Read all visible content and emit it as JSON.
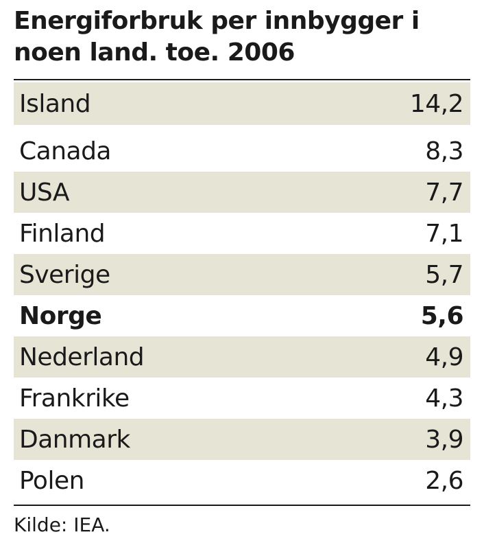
{
  "title": "Energiforbruk per innbygger i noen land. toe. 2006",
  "source": "Kilde: IEA.",
  "colors": {
    "shaded_row": "#e6e4d4",
    "text": "#1a1a1a"
  },
  "chart_data": {
    "type": "table",
    "title": "Energiforbruk per innbygger i noen land. toe. 2006",
    "unit": "toe",
    "year": 2006,
    "rows": [
      {
        "label": "Island",
        "value": "14,2",
        "number": 14.2,
        "shaded": true,
        "bold": false
      },
      {
        "label": "Canada",
        "value": "8,3",
        "number": 8.3,
        "shaded": false,
        "bold": false
      },
      {
        "label": "USA",
        "value": "7,7",
        "number": 7.7,
        "shaded": true,
        "bold": false
      },
      {
        "label": "Finland",
        "value": "7,1",
        "number": 7.1,
        "shaded": false,
        "bold": false
      },
      {
        "label": "Sverige",
        "value": "5,7",
        "number": 5.7,
        "shaded": true,
        "bold": false
      },
      {
        "label": "Norge",
        "value": "5,6",
        "number": 5.6,
        "shaded": false,
        "bold": true
      },
      {
        "label": "Nederland",
        "value": "4,9",
        "number": 4.9,
        "shaded": true,
        "bold": false
      },
      {
        "label": "Frankrike",
        "value": "4,3",
        "number": 4.3,
        "shaded": false,
        "bold": false
      },
      {
        "label": "Danmark",
        "value": "3,9",
        "number": 3.9,
        "shaded": true,
        "bold": false
      },
      {
        "label": "Polen",
        "value": "2,6",
        "number": 2.6,
        "shaded": false,
        "bold": false
      }
    ],
    "source": "Kilde: IEA."
  }
}
